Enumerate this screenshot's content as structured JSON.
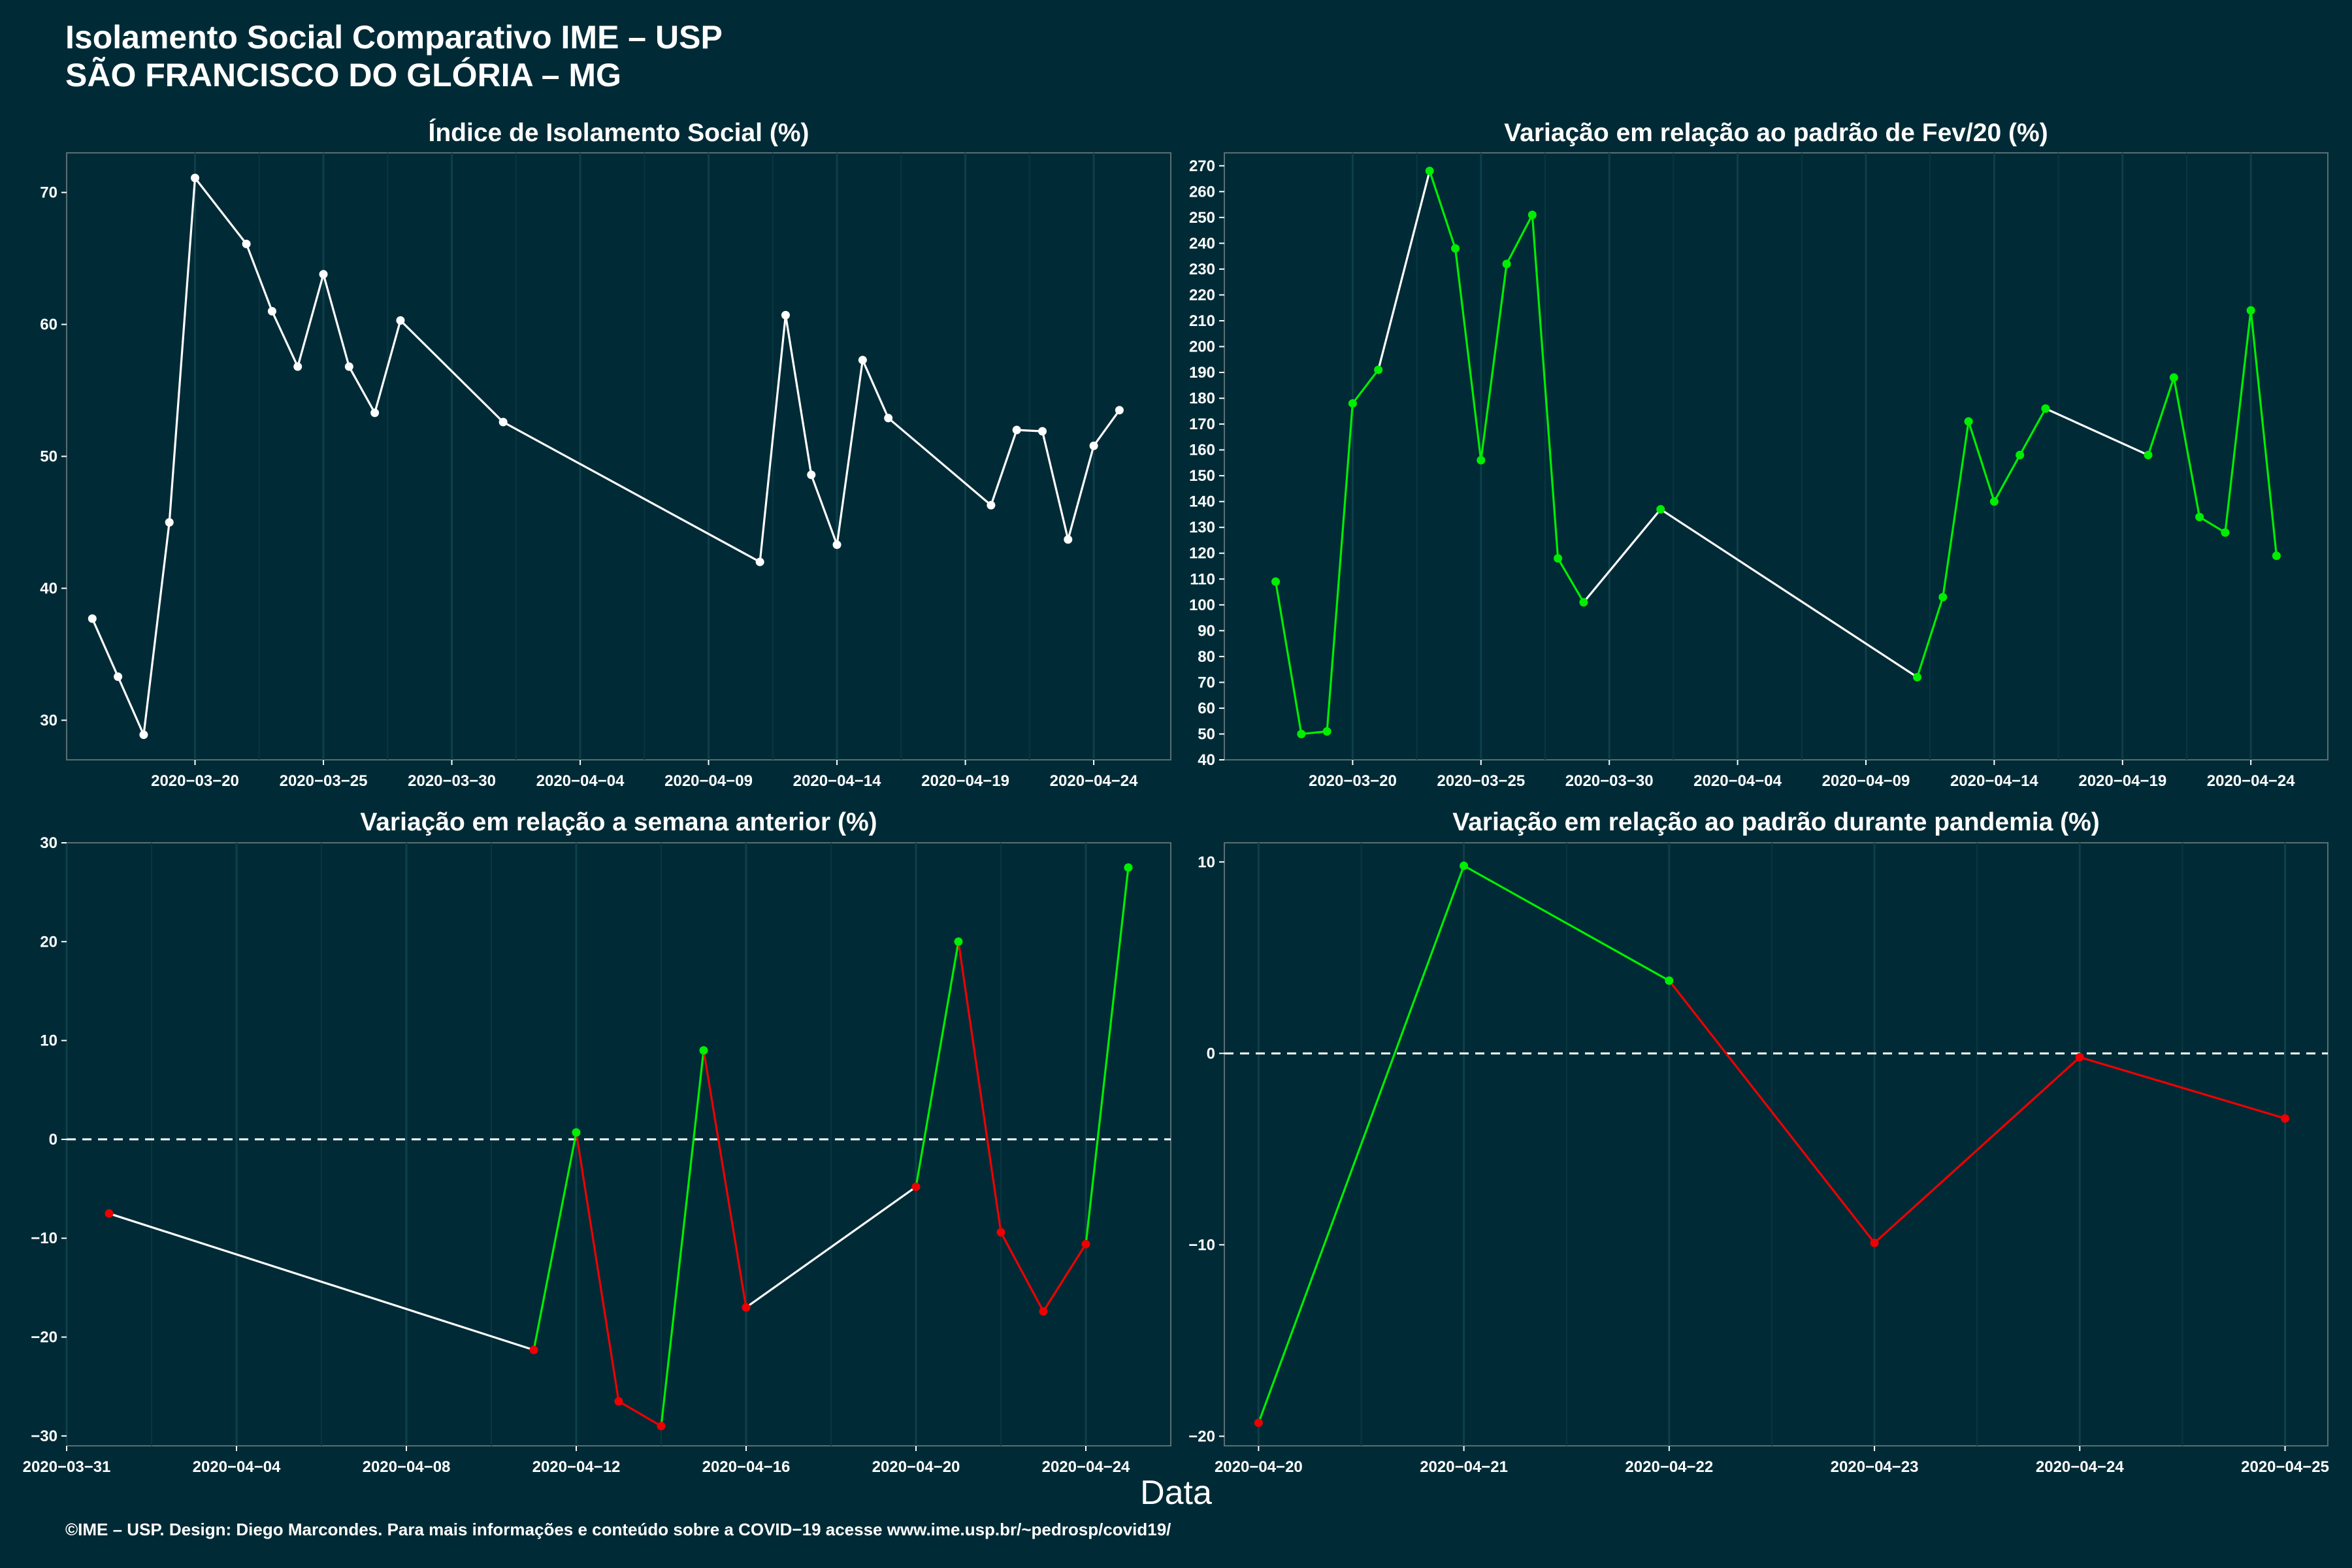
{
  "header": {
    "title_line1": "Isolamento Social Comparativo IME – USP",
    "title_line2": "SÃO FRANCISCO DO GLÓRIA – MG"
  },
  "xlabel": "Data",
  "footer": "©IME – USP. Design: Diego Marcondes. Para mais informações e conteúdo sobre a COVID−19 acesse www.ime.usp.br/~pedrosp/covid19/",
  "colors": {
    "background": "#002b36",
    "up": "#00ee00",
    "down": "#ee0000",
    "neutral": "#ffffff"
  },
  "chart_data": [
    {
      "type": "line",
      "title": "Índice de Isolamento Social (%)",
      "ylim": [
        27,
        73
      ],
      "yticks": [
        30,
        40,
        50,
        60,
        70
      ],
      "xlim": [
        "2020-03-15",
        "2020-04-27"
      ],
      "xticks": [
        "2020-03-20",
        "2020-03-25",
        "2020-03-30",
        "2020-04-04",
        "2020-04-09",
        "2020-04-14",
        "2020-04-19",
        "2020-04-24"
      ],
      "x": [
        "2020-03-16",
        "2020-03-17",
        "2020-03-18",
        "2020-03-19",
        "2020-03-20",
        "2020-03-22",
        "2020-03-23",
        "2020-03-24",
        "2020-03-25",
        "2020-03-26",
        "2020-03-27",
        "2020-03-28",
        "2020-04-01",
        "2020-04-11",
        "2020-04-12",
        "2020-04-13",
        "2020-04-14",
        "2020-04-15",
        "2020-04-16",
        "2020-04-20",
        "2020-04-21",
        "2020-04-22",
        "2020-04-23",
        "2020-04-24",
        "2020-04-25"
      ],
      "y": [
        37.7,
        33.3,
        28.9,
        45.0,
        71.1,
        66.1,
        61.0,
        56.8,
        63.8,
        56.8,
        53.3,
        60.3,
        52.6,
        42.0,
        60.7,
        48.6,
        43.3,
        57.3,
        52.9,
        46.3,
        52.0,
        51.9,
        43.7,
        50.8,
        53.5
      ],
      "line_colors": [
        "#ffffff"
      ]
    },
    {
      "type": "line",
      "title": "Variação em relação ao padrão de Fev/20 (%)",
      "ylim": [
        40,
        275
      ],
      "yticks": [
        40,
        50,
        60,
        70,
        80,
        90,
        100,
        110,
        120,
        130,
        140,
        150,
        160,
        170,
        180,
        190,
        200,
        210,
        220,
        230,
        240,
        250,
        260,
        270
      ],
      "xlim": [
        "2020-03-15",
        "2020-04-27"
      ],
      "xticks": [
        "2020-03-20",
        "2020-03-25",
        "2020-03-30",
        "2020-04-04",
        "2020-04-09",
        "2020-04-14",
        "2020-04-19",
        "2020-04-24"
      ],
      "x": [
        "2020-03-17",
        "2020-03-18",
        "2020-03-19",
        "2020-03-20",
        "2020-03-21",
        "2020-03-23",
        "2020-03-24",
        "2020-03-25",
        "2020-03-26",
        "2020-03-27",
        "2020-03-28",
        "2020-03-29",
        "2020-04-01",
        "2020-04-11",
        "2020-04-12",
        "2020-04-13",
        "2020-04-14",
        "2020-04-15",
        "2020-04-16",
        "2020-04-20",
        "2020-04-21",
        "2020-04-22",
        "2020-04-23",
        "2020-04-24",
        "2020-04-25"
      ],
      "y": [
        109,
        50,
        51,
        178,
        191,
        268,
        238,
        156,
        232,
        251,
        118,
        101,
        137,
        72,
        103,
        171,
        140,
        158,
        176,
        158,
        188,
        134,
        128,
        214,
        119
      ],
      "line_colors": [
        "#00ee00",
        "#00ee00",
        "#00ee00",
        "#00ee00",
        "#ffffff",
        "#00ee00",
        "#00ee00",
        "#00ee00",
        "#00ee00",
        "#00ee00",
        "#00ee00",
        "#ffffff",
        "#ffffff",
        "#00ee00",
        "#00ee00",
        "#00ee00",
        "#00ee00",
        "#00ee00",
        "#ffffff",
        "#00ee00",
        "#00ee00",
        "#00ee00",
        "#00ee00",
        "#00ee00"
      ],
      "point_color": "#00ee00"
    },
    {
      "type": "line",
      "title": "Variação em relação a semana anterior (%)",
      "ylim": [
        -31,
        30
      ],
      "yticks": [
        -30,
        -20,
        -10,
        0,
        10,
        20,
        30
      ],
      "xlim": [
        "2020-03-31",
        "2020-04-26"
      ],
      "xticks": [
        "2020-03-31",
        "2020-04-04",
        "2020-04-08",
        "2020-04-12",
        "2020-04-16",
        "2020-04-20",
        "2020-04-24"
      ],
      "reference_line": 0,
      "x": [
        "2020-04-01",
        "2020-04-11",
        "2020-04-12",
        "2020-04-13",
        "2020-04-14",
        "2020-04-15",
        "2020-04-16",
        "2020-04-20",
        "2020-04-21",
        "2020-04-22",
        "2020-04-23",
        "2020-04-24",
        "2020-04-25"
      ],
      "y": [
        -7.5,
        -21.3,
        0.7,
        -26.5,
        -29.0,
        9.0,
        -17.0,
        -4.8,
        20.0,
        -9.4,
        -17.4,
        -10.6,
        27.5
      ],
      "line_colors": [
        "#ffffff",
        "#00ee00",
        "#ee0000",
        "#ee0000",
        "#00ee00",
        "#ee0000",
        "#ffffff",
        "#00ee00",
        "#ee0000",
        "#ee0000",
        "#ee0000",
        "#00ee00"
      ],
      "point_colors": [
        "#ee0000",
        "#ee0000",
        "#00ee00",
        "#ee0000",
        "#ee0000",
        "#00ee00",
        "#ee0000",
        "#ee0000",
        "#00ee00",
        "#ee0000",
        "#ee0000",
        "#ee0000",
        "#00ee00"
      ]
    },
    {
      "type": "line",
      "title": "Variação em relação ao padrão durante pandemia (%)",
      "ylim": [
        -20.5,
        11
      ],
      "yticks": [
        -20,
        -10,
        0,
        10
      ],
      "xlim": [
        "2020-04-19T20:00",
        "2020-04-25T05:00"
      ],
      "xticks": [
        "2020-04-20",
        "2020-04-21",
        "2020-04-22",
        "2020-04-23",
        "2020-04-24",
        "2020-04-25"
      ],
      "reference_line": 0,
      "x": [
        "2020-04-20",
        "2020-04-21",
        "2020-04-22",
        "2020-04-23",
        "2020-04-24",
        "2020-04-25"
      ],
      "y": [
        -19.3,
        9.8,
        3.8,
        -9.9,
        -0.2,
        -3.4
      ],
      "line_colors": [
        "#00ee00",
        "#00ee00",
        "#ee0000",
        "#ee0000",
        "#ee0000"
      ],
      "point_colors": [
        "#ee0000",
        "#00ee00",
        "#00ee00",
        "#ee0000",
        "#ee0000",
        "#ee0000"
      ]
    }
  ]
}
